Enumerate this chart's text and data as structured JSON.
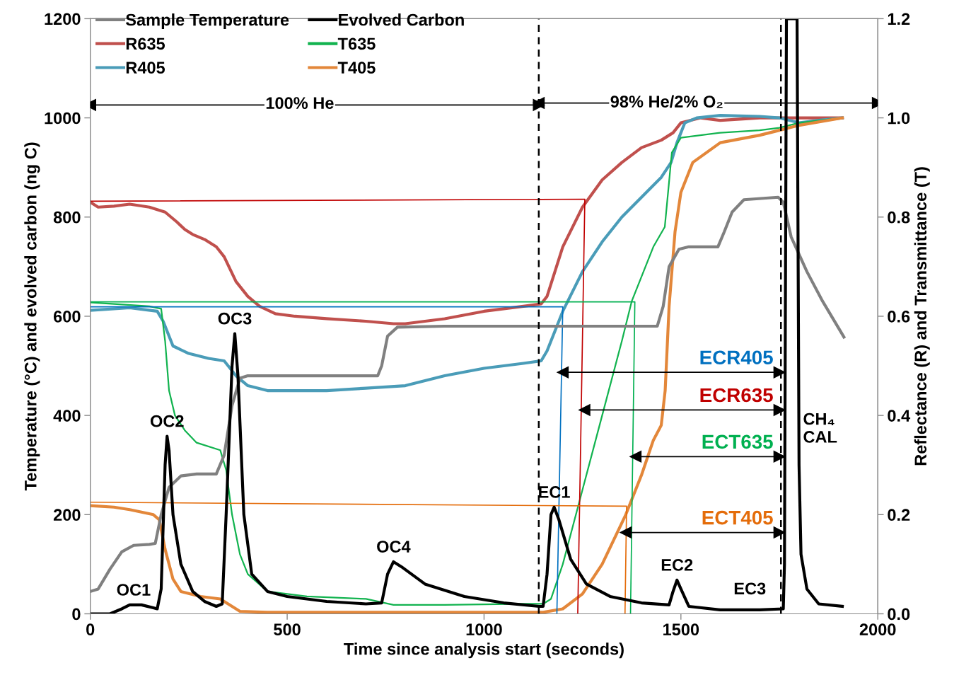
{
  "chart_data": {
    "type": "line",
    "xlabel": "Time since analysis start (seconds)",
    "ylabel": "Temperature (°C) and evolved carbon (ng C)",
    "y2label": "Reflectance (R) and Transmittance (T)",
    "xlim": [
      0,
      2000
    ],
    "xticks": [
      0,
      500,
      1000,
      1500,
      2000
    ],
    "ylim": [
      0,
      1200
    ],
    "yticks": [
      0,
      200,
      400,
      600,
      800,
      1000,
      1200
    ],
    "y2lim": [
      0,
      1.2
    ],
    "y2ticks": [
      {
        "value": 0,
        "label": "0.0"
      },
      {
        "value": 0.2,
        "label": "0.2"
      },
      {
        "value": 0.4,
        "label": "0.4"
      },
      {
        "value": 0.6,
        "label": "0.6"
      },
      {
        "value": 0.8,
        "label": "0.8"
      },
      {
        "value": 1.0,
        "label": "1.0"
      },
      {
        "value": 1.2,
        "label": "1.2"
      }
    ],
    "grid": false,
    "legend": "top left",
    "series": [
      {
        "name": "Sample Temperature",
        "color": "#808080",
        "x": [
          0,
          20,
          50,
          80,
          110,
          150,
          165,
          180,
          200,
          230,
          270,
          320,
          340,
          360,
          380,
          400,
          500,
          600,
          730,
          740,
          755,
          780,
          900,
          1100,
          1300,
          1440,
          1455,
          1470,
          1495,
          1520,
          1594,
          1610,
          1630,
          1660,
          1747,
          1760,
          1780,
          1820,
          1860,
          1914
        ],
        "values": [
          45,
          50,
          90,
          125,
          138,
          140,
          142,
          200,
          255,
          278,
          282,
          282,
          320,
          420,
          475,
          480,
          480,
          480,
          480,
          500,
          560,
          578,
          580,
          580,
          580,
          580,
          620,
          700,
          735,
          740,
          740,
          770,
          810,
          835,
          840,
          830,
          760,
          690,
          630,
          558
        ]
      },
      {
        "name": "R635",
        "color": "#c0504d",
        "axis": "y2",
        "x": [
          0,
          20,
          60,
          100,
          150,
          190,
          220,
          240,
          260,
          290,
          320,
          340,
          370,
          400,
          430,
          470,
          520,
          600,
          700,
          770,
          800,
          900,
          1000,
          1100,
          1145,
          1160,
          1200,
          1250,
          1300,
          1350,
          1400,
          1450,
          1480,
          1500,
          1550,
          1600,
          1700,
          1800,
          1910
        ],
        "values": [
          0.83,
          0.82,
          0.822,
          0.826,
          0.82,
          0.81,
          0.79,
          0.775,
          0.765,
          0.755,
          0.74,
          0.72,
          0.67,
          0.64,
          0.62,
          0.605,
          0.6,
          0.595,
          0.59,
          0.585,
          0.585,
          0.595,
          0.61,
          0.62,
          0.625,
          0.64,
          0.74,
          0.82,
          0.875,
          0.91,
          0.94,
          0.955,
          0.97,
          0.99,
          1.0,
          0.995,
          1.0,
          1.0,
          1.0
        ]
      },
      {
        "name": "R405",
        "color": "#4a9cb8",
        "axis": "y2",
        "x": [
          0,
          100,
          170,
          185,
          210,
          250,
          300,
          340,
          370,
          400,
          450,
          600,
          700,
          800,
          900,
          1000,
          1100,
          1145,
          1160,
          1200,
          1250,
          1300,
          1350,
          1400,
          1450,
          1475,
          1490,
          1510,
          1540,
          1600,
          1700,
          1750,
          1800,
          1850,
          1910
        ],
        "values": [
          0.612,
          0.617,
          0.61,
          0.59,
          0.54,
          0.525,
          0.515,
          0.51,
          0.48,
          0.46,
          0.45,
          0.45,
          0.455,
          0.46,
          0.48,
          0.495,
          0.505,
          0.51,
          0.53,
          0.61,
          0.69,
          0.75,
          0.8,
          0.84,
          0.88,
          0.91,
          0.95,
          0.99,
          1.0,
          1.005,
          1.003,
          1.0,
          0.99,
          0.995,
          1.0
        ]
      },
      {
        "name": "Evolved Carbon",
        "color": "#000000",
        "x": [
          0,
          50,
          80,
          100,
          130,
          160,
          170,
          180,
          190,
          195,
          200,
          210,
          230,
          260,
          290,
          320,
          335,
          345,
          360,
          367,
          375,
          390,
          410,
          450,
          500,
          600,
          700,
          740,
          755,
          770,
          790,
          850,
          950,
          1050,
          1140,
          1150,
          1160,
          1170,
          1178,
          1190,
          1220,
          1260,
          1320,
          1400,
          1470,
          1480,
          1490,
          1500,
          1520,
          1600,
          1700,
          1760,
          1763,
          1768,
          1795,
          1800,
          1805,
          1820,
          1850,
          1910
        ],
        "values": [
          0,
          0,
          10,
          18,
          18,
          12,
          10,
          50,
          300,
          358,
          330,
          200,
          100,
          45,
          25,
          15,
          20,
          200,
          500,
          565,
          480,
          200,
          80,
          45,
          35,
          25,
          20,
          22,
          80,
          105,
          95,
          60,
          35,
          22,
          15,
          15,
          80,
          200,
          215,
          190,
          110,
          60,
          35,
          22,
          18,
          45,
          68,
          50,
          15,
          8,
          8,
          10,
          100,
          1200,
          1200,
          300,
          120,
          50,
          20,
          15
        ]
      },
      {
        "name": "T635",
        "color": "#12b34f",
        "axis": "y2",
        "x": [
          0,
          150,
          180,
          190,
          200,
          215,
          240,
          270,
          330,
          345,
          360,
          380,
          400,
          450,
          550,
          700,
          770,
          900,
          1100,
          1150,
          1170,
          1200,
          1250,
          1300,
          1350,
          1375,
          1400,
          1430,
          1459,
          1477,
          1500,
          1600,
          1700,
          1750,
          1800,
          1910
        ],
        "values": [
          0.628,
          0.62,
          0.615,
          0.55,
          0.45,
          0.4,
          0.37,
          0.345,
          0.33,
          0.29,
          0.2,
          0.12,
          0.08,
          0.045,
          0.035,
          0.03,
          0.018,
          0.018,
          0.02,
          0.02,
          0.03,
          0.1,
          0.25,
          0.4,
          0.55,
          0.63,
          0.68,
          0.74,
          0.78,
          0.93,
          0.96,
          0.97,
          0.975,
          0.98,
          0.99,
          1.0
        ]
      },
      {
        "name": "T405",
        "color": "#e3873a",
        "axis": "y2",
        "x": [
          0,
          60,
          100,
          160,
          175,
          190,
          210,
          230,
          280,
          330,
          350,
          380,
          450,
          1150,
          1200,
          1250,
          1300,
          1360,
          1400,
          1430,
          1450,
          1460,
          1470,
          1485,
          1500,
          1530,
          1600,
          1700,
          1750,
          1800,
          1910
        ],
        "values": [
          0.218,
          0.215,
          0.21,
          0.2,
          0.19,
          0.13,
          0.07,
          0.045,
          0.035,
          0.03,
          0.02,
          0.005,
          0.003,
          0.003,
          0.01,
          0.04,
          0.1,
          0.2,
          0.28,
          0.35,
          0.38,
          0.45,
          0.62,
          0.77,
          0.85,
          0.91,
          0.95,
          0.965,
          0.975,
          0.985,
          1.0
        ]
      },
      {
        "color": "#0070c0",
        "axis": "y2",
        "x": [
          0,
          1200,
          1185
        ],
        "values": [
          0.619,
          0.619,
          0
        ],
        "name": "ECR405"
      },
      {
        "color": "#000000",
        "marker": "triangle",
        "x": [
          1200,
          1750
        ],
        "values": [
          487,
          487
        ]
      },
      {
        "color": "#c00000",
        "axis": "y2",
        "x": [
          0,
          1256,
          1238
        ],
        "values": [
          0.832,
          0.836,
          0
        ],
        "name": "ECR635"
      },
      {
        "color": "#000000",
        "marker": "triangle",
        "x": [
          1255,
          1750
        ],
        "values": [
          411,
          411
        ]
      },
      {
        "color": "#00b050",
        "axis": "y2",
        "x": [
          0,
          1383,
          1372
        ],
        "values": [
          0.629,
          0.629,
          0
        ],
        "name": "ECT635"
      },
      {
        "color": "#000000",
        "marker": "triangle",
        "x": [
          1385,
          1750
        ],
        "values": [
          317,
          317
        ]
      },
      {
        "color": "#e46c0a",
        "axis": "y2",
        "x": [
          0,
          1362,
          1358
        ],
        "values": [
          0.225,
          0.217,
          0
        ],
        "name": "ECT405"
      },
      {
        "color": "#000000",
        "marker": "triangle",
        "x": [
          1360,
          1750
        ],
        "values": [
          164,
          164
        ]
      },
      {
        "color": "#000000",
        "marker": "triangle",
        "x": [
          0,
          1139
        ],
        "values": [
          1026,
          1026
        ]
      },
      {
        "color": "#000000",
        "marker": "triangle",
        "x": [
          1139,
          2000
        ],
        "values": [
          1030,
          1030
        ]
      }
    ],
    "ref_lines": [
      {
        "axis": "x",
        "value": 1139,
        "color": "#000000",
        "line_style": "dashed"
      },
      {
        "axis": "x",
        "value": 1754,
        "color": "#000000",
        "line_style": "dashed"
      }
    ],
    "annotations": [
      {
        "text": "OC1",
        "x": 110,
        "y": 18
      },
      {
        "text": "OC2",
        "x": 195,
        "y": 358
      },
      {
        "text": "OC3",
        "x": 367,
        "y": 565
      },
      {
        "text": "OC4",
        "x": 770,
        "y": 105
      },
      {
        "text": "EC1",
        "x": 1178,
        "y": 215
      },
      {
        "text": "EC2",
        "x": 1490,
        "y": 68
      },
      "EC3",
      "CH₄\nCAL",
      {
        "text": "100% He",
        "x": 532,
        "y": 1027
      },
      {
        "text": "98% He/2% O₂",
        "x": 1464,
        "y": 1030
      }
    ]
  }
}
